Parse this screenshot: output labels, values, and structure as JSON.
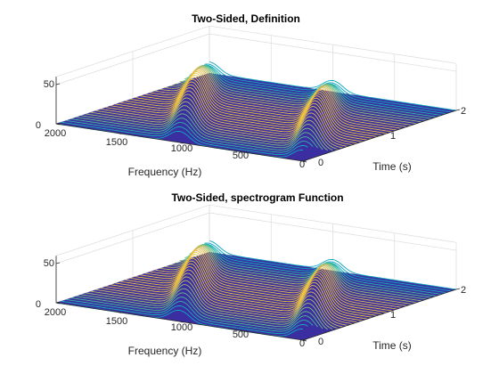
{
  "chart_data": [
    {
      "type": "waterfall",
      "title": "Two-Sided, Definition",
      "xlabel": "Frequency (Hz)",
      "ylabel": "Time (s)",
      "zlabel": "",
      "x_ticks": [
        "2000",
        "1500",
        "1000",
        "500",
        "0"
      ],
      "y_ticks": [
        "0",
        "1",
        "2"
      ],
      "z_ticks": [
        "0",
        "50"
      ],
      "xlim": [
        0,
        2000
      ],
      "ylim": [
        0,
        2
      ],
      "zlim": [
        0,
        50
      ],
      "grid": true,
      "colormap": "parula",
      "series": [
        {
          "peak_frequency_start": 1000,
          "peak_frequency_end": 2000,
          "peak_height": 50
        },
        {
          "peak_frequency_start": 0,
          "peak_frequency_end": 1000,
          "peak_height": 50
        }
      ]
    },
    {
      "type": "waterfall",
      "title": "Two-Sided, spectrogram Function",
      "xlabel": "Frequency (Hz)",
      "ylabel": "Time (s)",
      "zlabel": "",
      "x_ticks": [
        "2000",
        "1500",
        "1000",
        "500",
        "0"
      ],
      "y_ticks": [
        "0",
        "1",
        "2"
      ],
      "z_ticks": [
        "0",
        "50"
      ],
      "xlim": [
        0,
        2000
      ],
      "ylim": [
        0,
        2
      ],
      "zlim": [
        0,
        50
      ],
      "grid": true,
      "colormap": "parula",
      "series": [
        {
          "peak_frequency_start": 1000,
          "peak_frequency_end": 2000,
          "peak_height": 50
        },
        {
          "peak_frequency_start": 0,
          "peak_frequency_end": 1000,
          "peak_height": 50
        }
      ]
    }
  ]
}
